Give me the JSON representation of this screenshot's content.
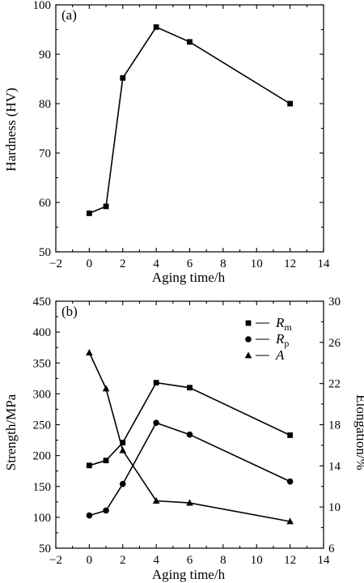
{
  "chart_data": [
    {
      "type": "line",
      "panel_label": "(a)",
      "xlabel": "Aging time/h",
      "ylabel": "Hardness (HV)",
      "xlim": [
        -2,
        14
      ],
      "ylim": [
        50,
        100
      ],
      "xticks": [
        -2,
        0,
        2,
        4,
        6,
        8,
        10,
        12,
        14
      ],
      "yticks": [
        50,
        60,
        70,
        80,
        90,
        100
      ],
      "grid": false,
      "series": [
        {
          "marker": "square",
          "x": [
            0,
            1,
            2,
            4,
            6,
            12
          ],
          "y": [
            57.8,
            59.2,
            85.2,
            95.5,
            92.5,
            80.0
          ]
        }
      ]
    },
    {
      "type": "line",
      "panel_label": "(b)",
      "xlabel": "Aging time/h",
      "ylabel": "Strength/MPa",
      "y2label": "Elongation/%",
      "xlim": [
        -2,
        14
      ],
      "ylim": [
        50,
        450
      ],
      "y2lim": [
        6,
        30
      ],
      "xticks": [
        -2,
        0,
        2,
        4,
        6,
        8,
        10,
        12,
        14
      ],
      "yticks": [
        50,
        100,
        150,
        200,
        250,
        300,
        350,
        400,
        450
      ],
      "y2ticks": [
        6,
        10,
        14,
        18,
        22,
        26,
        30
      ],
      "grid": false,
      "legend_position": "top-right",
      "series": [
        {
          "name": "R",
          "name_sub": "m",
          "marker": "square",
          "axis": "left",
          "x": [
            0,
            1,
            2,
            4,
            6,
            12
          ],
          "y": [
            184,
            192,
            221,
            318,
            310,
            233
          ]
        },
        {
          "name": "R",
          "name_sub": "p",
          "marker": "circle",
          "axis": "left",
          "x": [
            0,
            1,
            2,
            4,
            6,
            12
          ],
          "y": [
            103,
            111,
            154,
            253,
            234,
            158
          ]
        },
        {
          "name": "A",
          "name_sub": "",
          "marker": "triangle",
          "axis": "right",
          "x": [
            0,
            1,
            2,
            4,
            6,
            12
          ],
          "y": [
            25.0,
            21.5,
            15.5,
            10.6,
            10.4,
            8.6
          ]
        }
      ]
    }
  ]
}
